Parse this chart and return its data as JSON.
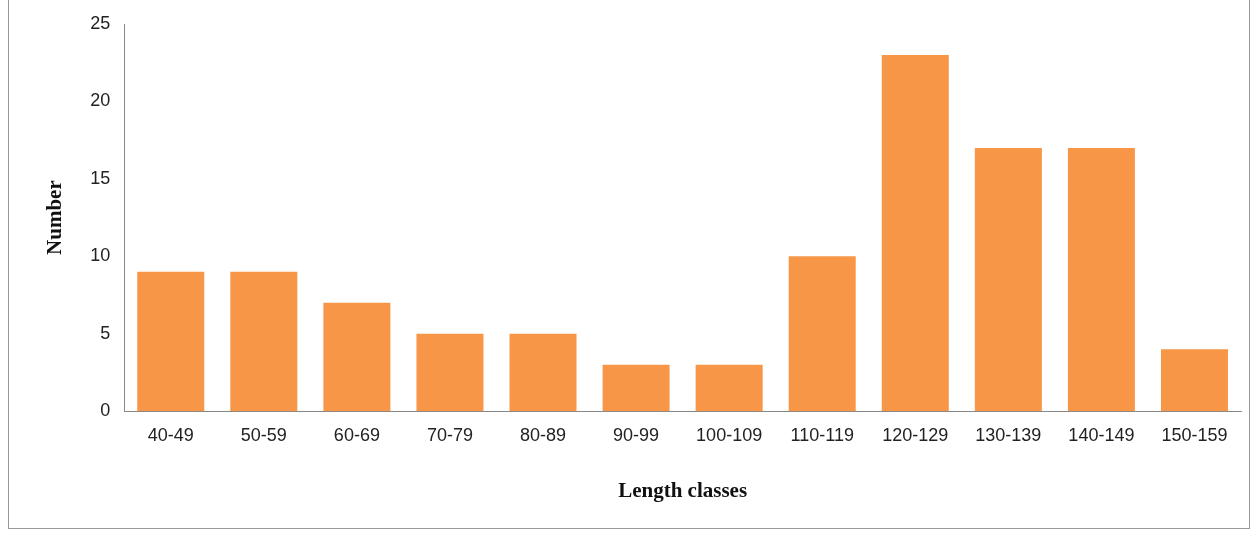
{
  "chart_data": {
    "type": "bar",
    "xlabel": "Length classes",
    "ylabel": "Number",
    "categories": [
      "40-49",
      "50-59",
      "60-69",
      "70-79",
      "80-89",
      "90-99",
      "100-109",
      "110-119",
      "120-129",
      "130-139",
      "140-149",
      "150-159"
    ],
    "values": [
      9,
      9,
      7,
      5,
      5,
      3,
      3,
      10,
      23,
      17,
      17,
      4
    ],
    "color": "#f79646",
    "ylim": [
      0,
      25
    ],
    "yticks": [
      0,
      5,
      10,
      15,
      20,
      25
    ],
    "grid": false,
    "legend": false
  }
}
